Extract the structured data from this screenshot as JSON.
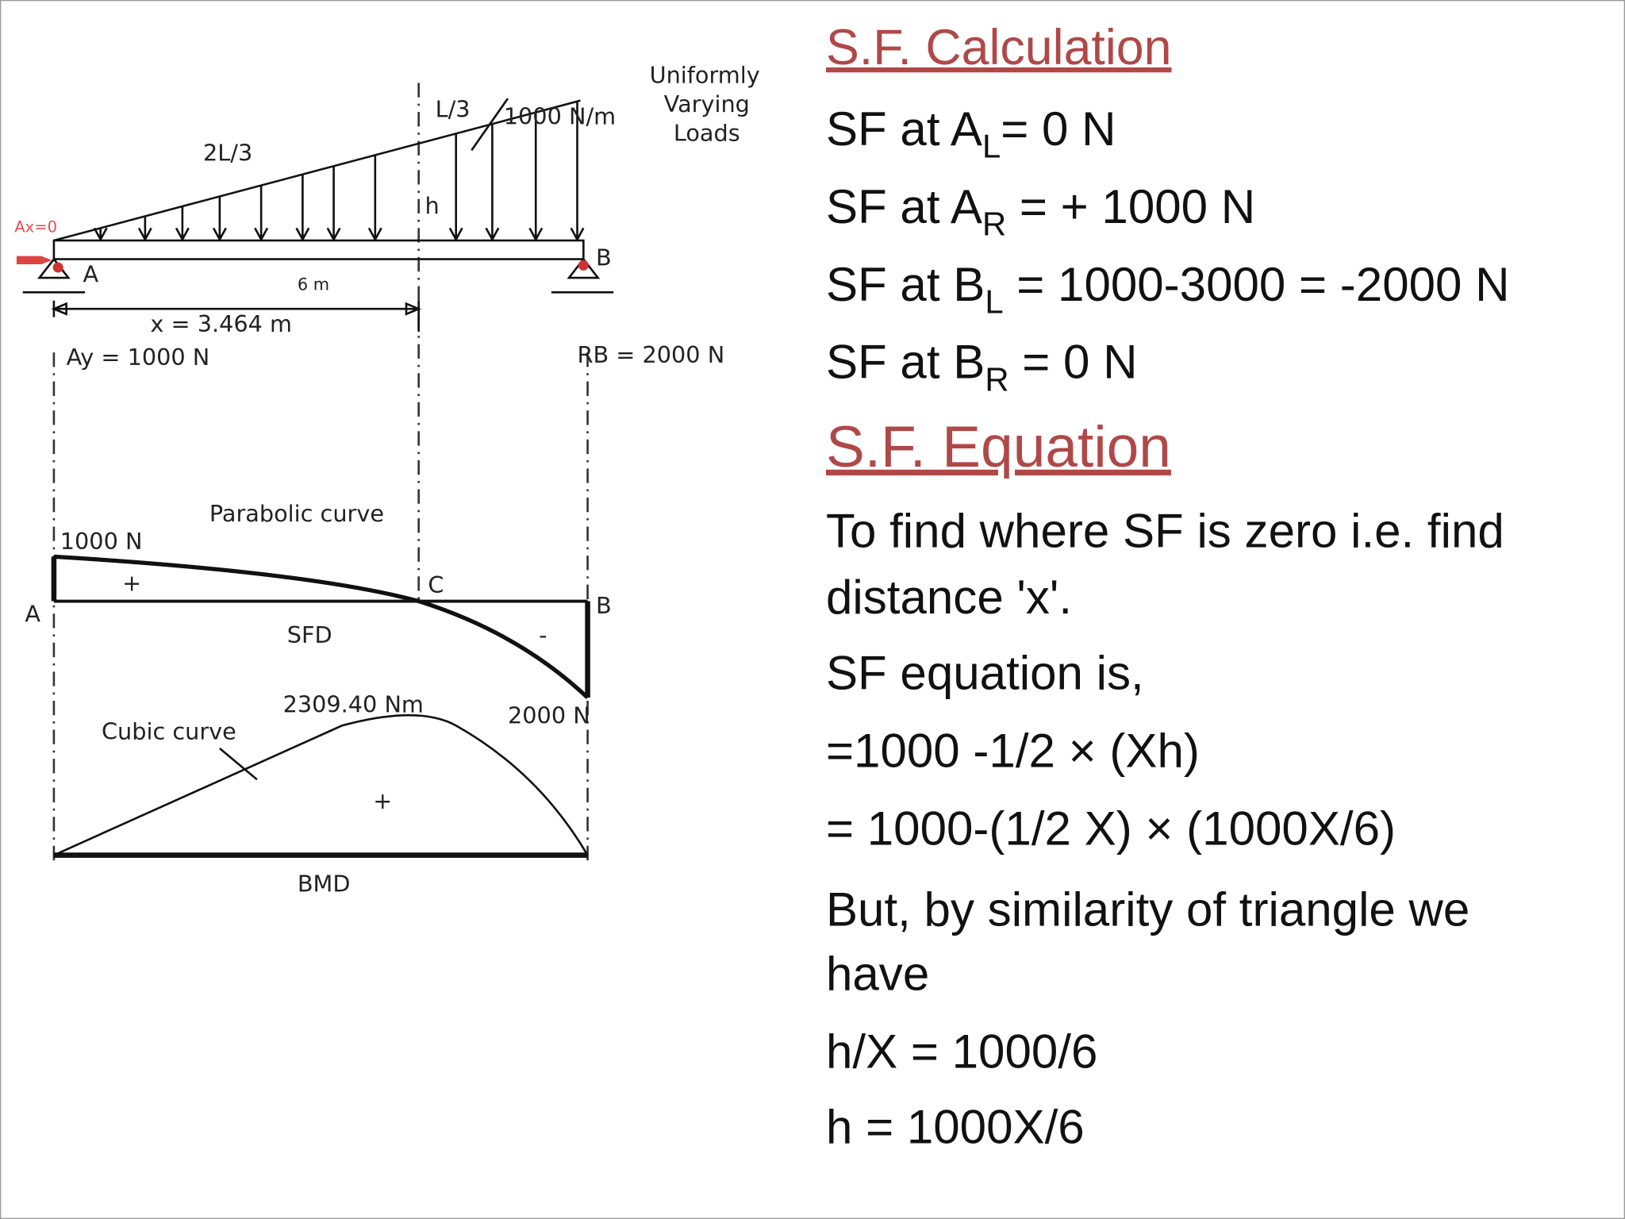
{
  "diagram": {
    "ax": "Ax=0",
    "beam_a": "A",
    "beam_b": "B",
    "two_l_3": "2L/3",
    "l_3": "L/3",
    "load": "1000 N/m",
    "udl": [
      "Uniformly",
      "Varying",
      "Loads"
    ],
    "h": "h",
    "span": "6 m",
    "x_dist": "x = 3.464 m",
    "ay": "Ay = 1000 N",
    "rb": "RB = 2000 N",
    "parabolic": "Parabolic curve",
    "sf_a": "1000 N",
    "sfd_plus": "+",
    "c": "C",
    "sfd_a": "A",
    "sfd_b": "B",
    "sfd": "SFD",
    "sfd_minus": "-",
    "sf_b": "2000 N",
    "bm_max": "2309.40 Nm",
    "cubic": "Cubic curve",
    "bmd_plus": "+",
    "bmd": "BMD"
  },
  "content": {
    "heading1": "S.F. Calculation",
    "calc": [
      {
        "pre": "SF at A",
        "sub": "L",
        "post": "= 0 N"
      },
      {
        "pre": "SF at A",
        "sub": "R",
        "post": " = + 1000 N"
      },
      {
        "pre": "SF at B",
        "sub": "L",
        "post": " = 1000-3000 = -2000 N"
      },
      {
        "pre": "SF at B",
        "sub": "R",
        "post": " = 0 N"
      }
    ],
    "heading2": "S.F. Equation",
    "lines": [
      "To find where SF is zero i.e. find",
      "distance 'x'.",
      "SF equation is,",
      "=1000 -1/2 × (Xh)",
      "= 1000-(1/2 X) × (1000X/6)",
      "But, by similarity of triangle we",
      "have",
      "h/X = 1000/6",
      "h = 1000X/6"
    ]
  }
}
